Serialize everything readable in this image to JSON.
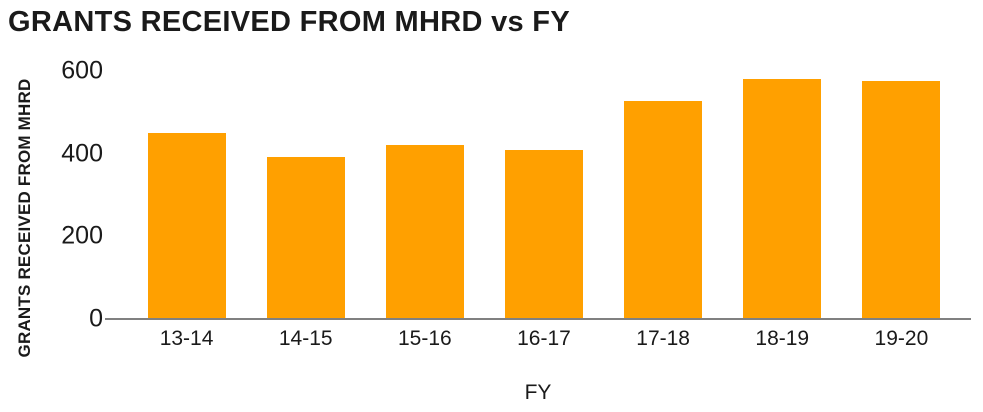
{
  "chart_data": {
    "type": "bar",
    "title": "GRANTS RECEIVED FROM MHRD vs FY",
    "xlabel": "FY",
    "ylabel": "GRANTS RECEIVED FROM MHRD",
    "categories": [
      "13-14",
      "14-15",
      "15-16",
      "16-17",
      "17-18",
      "18-19",
      "19-20"
    ],
    "values": [
      449,
      392,
      421,
      409,
      527,
      581,
      575
    ],
    "ylim": [
      0,
      600
    ],
    "yticks": [
      0,
      200,
      400,
      600
    ],
    "grid": false,
    "legend": false,
    "bar_color": "#FFA000",
    "axis_color": "#808080",
    "text_color": "#1A1A1A",
    "background_color": "#FFFFFF"
  }
}
